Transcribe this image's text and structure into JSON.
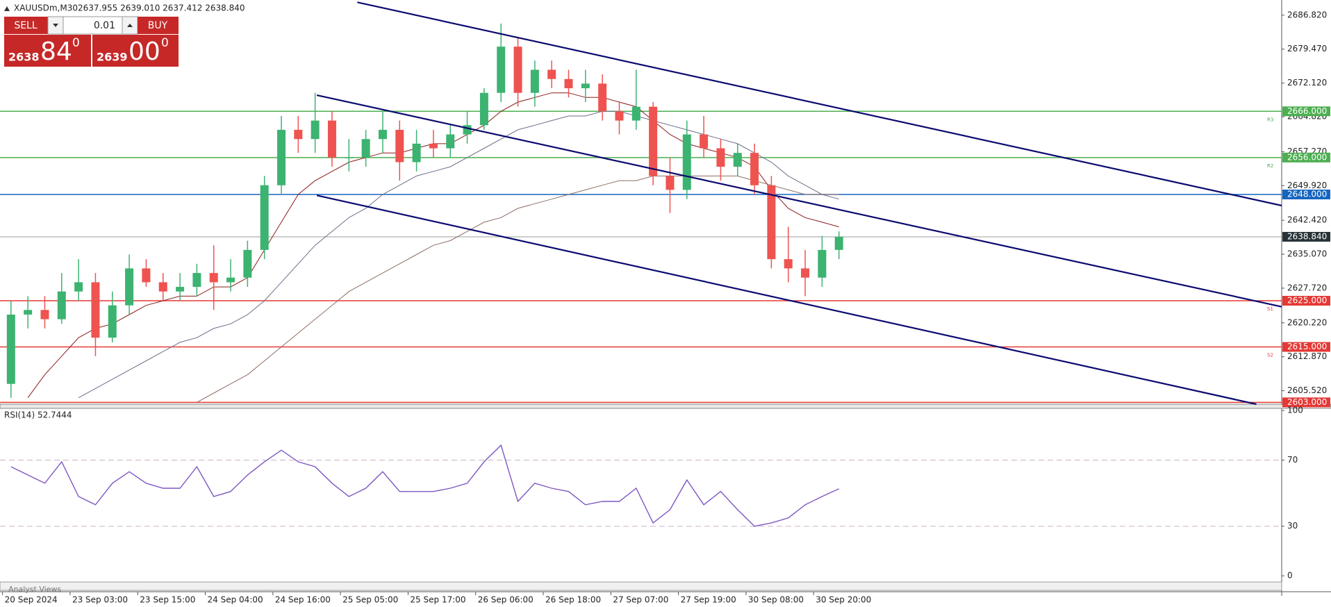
{
  "header": {
    "symbol": "XAUUSDm,M30",
    "ohlc": "2637.955 2639.010 2637.412 2638.840"
  },
  "trade_panel": {
    "sell": "SELL",
    "lot": "0.01",
    "buy": "BUY",
    "bid_big": "2638",
    "bid_pips": "84",
    "bid_frac": "0",
    "ask_big": "2639",
    "ask_pips": "00",
    "ask_frac": "0"
  },
  "chart_data": [
    {
      "type": "candlestick",
      "x": [
        0,
        1,
        2,
        3,
        4,
        5,
        6,
        7,
        8,
        9,
        10,
        11,
        12,
        13,
        14,
        15,
        16,
        17,
        18,
        19,
        20,
        21,
        22,
        23,
        24,
        25,
        26,
        27,
        28,
        29,
        30,
        31,
        32,
        33,
        34,
        35,
        36,
        37,
        38,
        39,
        40,
        41,
        42,
        43,
        44,
        45,
        46,
        47,
        48,
        49
      ],
      "open": [
        2607,
        2622,
        2623,
        2621,
        2627,
        2629,
        2617,
        2624,
        2632,
        2629,
        2627,
        2628,
        2631,
        2629,
        2630,
        2636,
        2650,
        2662,
        2660,
        2664,
        2656,
        2656,
        2660,
        2662,
        2655,
        2659,
        2658,
        2661,
        2663,
        2670,
        2680,
        2670,
        2675,
        2673,
        2671,
        2672,
        2666,
        2664,
        2667,
        2652,
        2649,
        2661,
        2658,
        2654,
        2657,
        2650,
        2634,
        2632,
        2630,
        2636
      ],
      "high": [
        2625,
        2626,
        2626,
        2631,
        2634,
        2631,
        2627,
        2635,
        2634,
        2631,
        2631,
        2633,
        2637,
        2634,
        2638,
        2652,
        2665,
        2665,
        2670,
        2666,
        2660,
        2662,
        2666,
        2664,
        2662,
        2662,
        2663,
        2666,
        2671,
        2685,
        2682,
        2677,
        2677,
        2675,
        2675,
        2674,
        2668,
        2675,
        2668,
        2656,
        2664,
        2665,
        2660,
        2659,
        2659,
        2652,
        2641,
        2636,
        2639,
        2640
      ],
      "low": [
        2604,
        2619,
        2619,
        2620,
        2625,
        2613,
        2616,
        2622,
        2628,
        2625,
        2625,
        2626,
        2623,
        2627,
        2628,
        2634,
        2648,
        2657,
        2657,
        2654,
        2653,
        2654,
        2657,
        2651,
        2653,
        2656,
        2656,
        2659,
        2662,
        2668,
        2667,
        2667,
        2671,
        2669,
        2668,
        2664,
        2661,
        2662,
        2650,
        2644,
        2647,
        2656,
        2651,
        2652,
        2648,
        2632,
        2629,
        2626,
        2628,
        2634
      ],
      "close": [
        2622,
        2623,
        2621,
        2627,
        2629,
        2617,
        2624,
        2632,
        2629,
        2627,
        2628,
        2631,
        2629,
        2630,
        2636,
        2650,
        2662,
        2660,
        2664,
        2656,
        2656,
        2660,
        2662,
        2655,
        2659,
        2658,
        2661,
        2663,
        2670,
        2680,
        2670,
        2675,
        2673,
        2671,
        2672,
        2666,
        2664,
        2667,
        2652,
        2649,
        2661,
        2658,
        2654,
        2657,
        2650,
        2634,
        2632,
        2630,
        2636,
        2638.84
      ],
      "up_color": "#3cb371",
      "down_color": "#ef5350",
      "overlays": [
        {
          "color": "#8b1a1a",
          "values": [
            null,
            2604,
            2609,
            2613,
            2617,
            2619,
            2620,
            2622,
            2624,
            2625,
            2626,
            2626,
            2628,
            2628,
            2630,
            2636,
            2642,
            2648,
            2651,
            2653,
            2655,
            2656,
            2657,
            2657,
            2658,
            2659,
            2659,
            2661,
            2663,
            2666,
            2668,
            2669,
            2670,
            2670,
            2669,
            2669,
            2668,
            2667,
            2664,
            2661,
            2659,
            2658,
            2657,
            2656,
            2654,
            2649,
            2645,
            2643,
            2642,
            2641
          ]
        },
        {
          "color": "#6d6d8a",
          "values": [
            null,
            null,
            null,
            null,
            2604,
            2606,
            2608,
            2610,
            2612,
            2614,
            2616,
            2617,
            2619,
            2620,
            2622,
            2625,
            2629,
            2633,
            2637,
            2640,
            2643,
            2645,
            2648,
            2650,
            2652,
            2653,
            2654,
            2656,
            2658,
            2660,
            2662,
            2663,
            2664,
            2665,
            2665,
            2666,
            2666,
            2665,
            2664,
            2663,
            2662,
            2661,
            2660,
            2659,
            2657,
            2655,
            2652,
            2650,
            2648,
            2647
          ]
        },
        {
          "color": "#8d6e63",
          "values": [
            null,
            null,
            null,
            null,
            null,
            null,
            null,
            null,
            null,
            null,
            null,
            2603,
            2605,
            2607,
            2609,
            2612,
            2615,
            2618,
            2621,
            2624,
            2627,
            2629,
            2631,
            2633,
            2635,
            2637,
            2638,
            2640,
            2642,
            2643,
            2645,
            2646,
            2647,
            2648,
            2649,
            2650,
            2651,
            2651,
            2652,
            2652,
            2652,
            2652,
            2652,
            2652,
            2651,
            2650,
            2649,
            2648,
            2648,
            2648
          ]
        }
      ],
      "trendlines": [
        {
          "color": "#0a0a6e",
          "x": [
            20.5,
            75.2
          ],
          "y": [
            2689.6,
            2645.6
          ]
        },
        {
          "color": "#0a0a6e",
          "x": [
            18.1,
            75.2
          ],
          "y": [
            2669.5,
            2623.7
          ]
        },
        {
          "color": "#0a0a6e",
          "x": [
            18.1,
            73.7
          ],
          "y": [
            2647.8,
            2602.6
          ]
        }
      ],
      "levels": [
        {
          "value": 2666,
          "label": "2666.000",
          "color": "#4caf50",
          "marker": "R3"
        },
        {
          "value": 2656,
          "label": "2656.000",
          "color": "#4caf50",
          "marker": "R2"
        },
        {
          "value": 2648,
          "label": "2648.000",
          "color": "#1565c0"
        },
        {
          "value": 2625,
          "label": "2625.000",
          "color": "#e53935",
          "marker": "S1"
        },
        {
          "value": 2615,
          "label": "2615.000",
          "color": "#e53935",
          "marker": "S2"
        },
        {
          "value": 2603,
          "label": "2603.000",
          "color": "#e53935"
        }
      ],
      "current_price": {
        "value": 2638.84,
        "label": "2638.840"
      },
      "xlim": [
        -0.65,
        75.2
      ],
      "ylim": [
        2602.6,
        2690.1
      ],
      "yticks": [
        {
          "value": 2686.82,
          "label": "2686.820"
        },
        {
          "value": 2679.47,
          "label": "2679.470"
        },
        {
          "value": 2672.12,
          "label": "2672.120"
        },
        {
          "value": 2664.82,
          "label": "2664.820"
        },
        {
          "value": 2657.27,
          "label": "2657.270"
        },
        {
          "value": 2649.92,
          "label": "2649.920"
        },
        {
          "value": 2642.42,
          "label": "2642.420"
        },
        {
          "value": 2635.07,
          "label": "2635.070"
        },
        {
          "value": 2627.72,
          "label": "2627.720"
        },
        {
          "value": 2620.22,
          "label": "2620.220"
        },
        {
          "value": 2612.87,
          "label": "2612.870"
        },
        {
          "value": 2605.52,
          "label": "2605.520"
        }
      ],
      "xticks": [
        {
          "value": -0.5,
          "label": "20 Sep 2024"
        },
        {
          "value": 3.5,
          "label": "23 Sep 03:00"
        },
        {
          "value": 7.5,
          "label": "23 Sep 15:00"
        },
        {
          "value": 11.5,
          "label": "24 Sep 04:00"
        },
        {
          "value": 15.5,
          "label": "24 Sep 16:00"
        },
        {
          "value": 19.5,
          "label": "25 Sep 05:00"
        },
        {
          "value": 23.5,
          "label": "25 Sep 17:00"
        },
        {
          "value": 27.5,
          "label": "26 Sep 06:00"
        },
        {
          "value": 31.5,
          "label": "26 Sep 18:00"
        },
        {
          "value": 35.5,
          "label": "27 Sep 07:00"
        },
        {
          "value": 39.5,
          "label": "27 Sep 19:00"
        },
        {
          "value": 43.5,
          "label": "30 Sep 08:00"
        },
        {
          "value": 47.5,
          "label": "30 Sep 20:00"
        }
      ]
    },
    {
      "type": "line",
      "title": "RSI(14) 52.7444",
      "color": "#7e57c2",
      "x": [
        0,
        1,
        2,
        3,
        4,
        5,
        6,
        7,
        8,
        9,
        10,
        11,
        12,
        13,
        14,
        15,
        16,
        17,
        18,
        19,
        20,
        21,
        22,
        23,
        24,
        25,
        26,
        27,
        28,
        29,
        30,
        31,
        32,
        33,
        34,
        35,
        36,
        37,
        38,
        39,
        40,
        41,
        42,
        43,
        44,
        45,
        46,
        47,
        48,
        49
      ],
      "values": [
        66,
        61,
        56,
        69,
        48,
        43,
        56,
        63,
        56,
        53,
        53,
        66,
        48,
        51,
        61,
        69,
        76,
        69,
        66,
        56,
        48,
        53,
        63,
        51,
        51,
        51,
        53,
        56,
        69,
        79,
        45,
        56,
        53,
        51,
        43,
        45,
        45,
        53,
        32,
        40,
        58,
        43,
        51,
        40,
        30,
        32,
        35,
        43,
        48,
        52.7
      ],
      "xlim": [
        -0.65,
        75.2
      ],
      "ylim": [
        -2.9,
        101.3
      ],
      "yticks": [
        0,
        30,
        70,
        100
      ],
      "grid": true
    }
  ],
  "footer": {
    "tab": "Analyst Views"
  }
}
